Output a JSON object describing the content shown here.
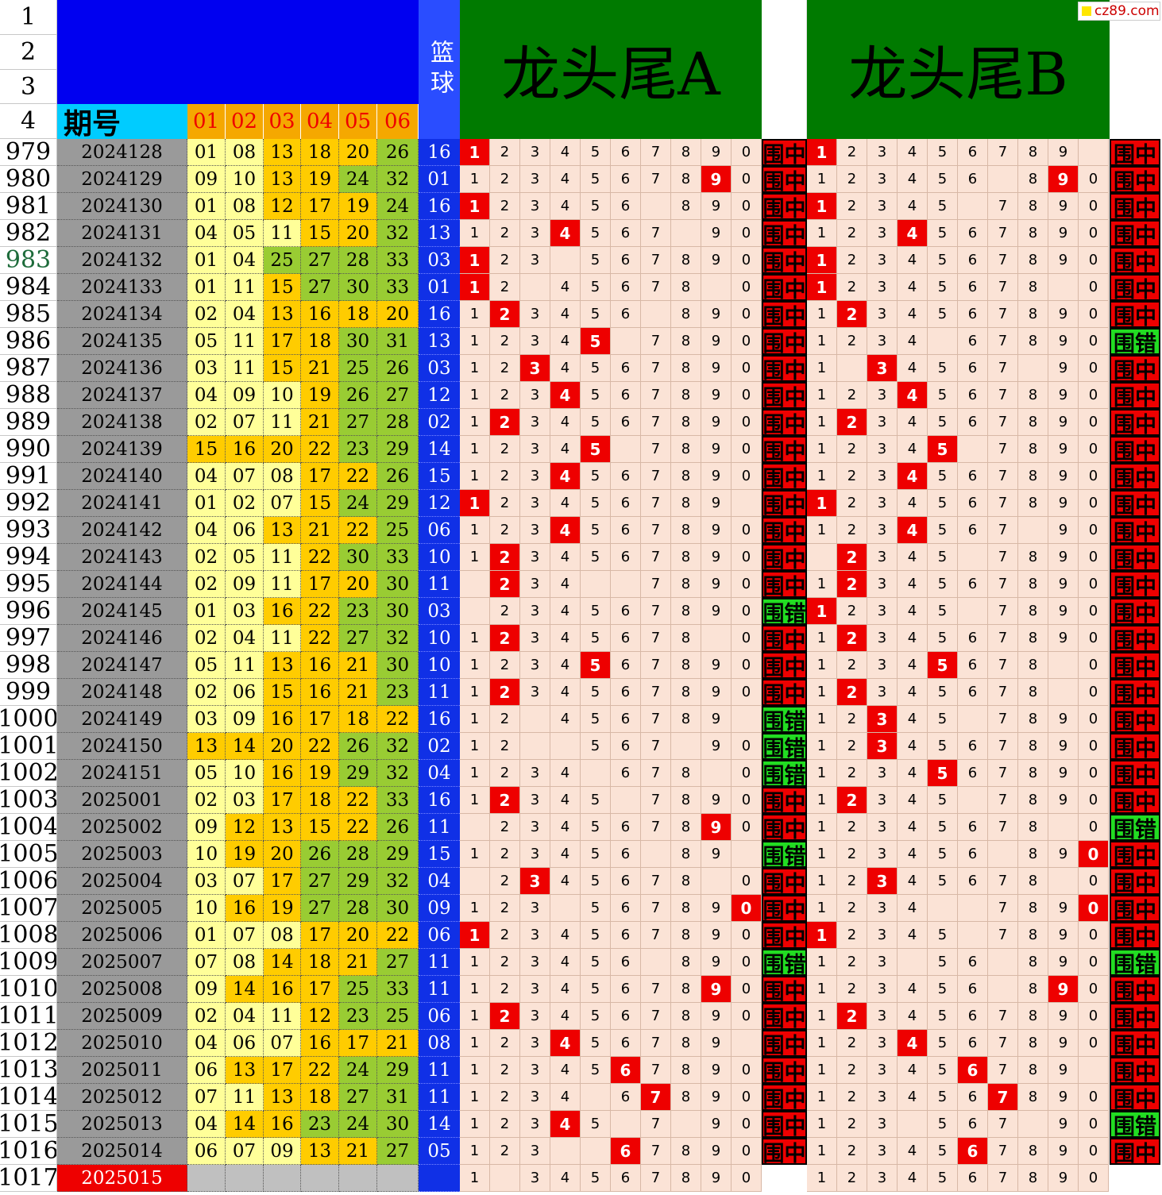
{
  "header": {
    "row_numbers": [
      "1",
      "2",
      "3",
      "4"
    ],
    "period_label": "期号",
    "num_headers": [
      "01",
      "02",
      "03",
      "04",
      "05",
      "06"
    ],
    "blue_label": "篮球",
    "title_a": "龙头尾A",
    "title_b": "龙头尾B",
    "logo": "cz89.com"
  },
  "legend_colors": {
    "hit": "#ee0000",
    "status_hit": "#ee0000",
    "status_miss": "#22dd22",
    "period": "#9a9a9a",
    "blue": "#1030e6"
  },
  "status_labels": {
    "hit": "围中",
    "miss": "围错"
  },
  "rows": [
    {
      "n": "979",
      "p": "2024128",
      "nums": [
        "01",
        "08",
        "13",
        "18",
        "20",
        "26"
      ],
      "b": "16",
      "a": "1",
      "ae": "",
      "as": "h",
      "bd": "1",
      "be": "0",
      "bs": "h"
    },
    {
      "n": "980",
      "p": "2024129",
      "nums": [
        "09",
        "10",
        "13",
        "19",
        "24",
        "32"
      ],
      "b": "01",
      "a": "9",
      "ae": "",
      "as": "h",
      "bd": "9",
      "be": "7",
      "bs": "h"
    },
    {
      "n": "981",
      "p": "2024130",
      "nums": [
        "01",
        "08",
        "12",
        "17",
        "19",
        "24"
      ],
      "b": "16",
      "a": "1",
      "ae": "7",
      "as": "h",
      "bd": "1",
      "be": "6",
      "bs": "h"
    },
    {
      "n": "982",
      "p": "2024131",
      "nums": [
        "04",
        "05",
        "11",
        "15",
        "20",
        "32"
      ],
      "b": "13",
      "a": "4",
      "ae": "8",
      "as": "h",
      "bd": "4",
      "be": "",
      "as2": "",
      "bs": "h"
    },
    {
      "n": "983",
      "p": "2024132",
      "nums": [
        "01",
        "04",
        "25",
        "27",
        "28",
        "33"
      ],
      "b": "03",
      "a": "1",
      "ae": "4",
      "as": "h",
      "bd": "1",
      "be": "",
      "bs": "h"
    },
    {
      "n": "984",
      "p": "2024133",
      "nums": [
        "01",
        "11",
        "15",
        "27",
        "30",
        "33"
      ],
      "b": "01",
      "a": "1",
      "ae": "3,9",
      "as": "h",
      "bd": "1",
      "be": "9",
      "bs": "h"
    },
    {
      "n": "985",
      "p": "2024134",
      "nums": [
        "02",
        "04",
        "13",
        "16",
        "18",
        "20"
      ],
      "b": "16",
      "a": "2",
      "ae": "7",
      "as": "h",
      "bd": "2",
      "be": "",
      "bs": "h"
    },
    {
      "n": "986",
      "p": "2024135",
      "nums": [
        "05",
        "11",
        "17",
        "18",
        "30",
        "31"
      ],
      "b": "13",
      "a": "5",
      "ae": "6",
      "as": "h",
      "bd": "",
      "be": "5",
      "bs": "m"
    },
    {
      "n": "987",
      "p": "2024136",
      "nums": [
        "03",
        "11",
        "15",
        "21",
        "25",
        "26"
      ],
      "b": "03",
      "a": "3",
      "ae": "",
      "as": "h",
      "bd": "3",
      "be": "2,8",
      "bs": "h"
    },
    {
      "n": "988",
      "p": "2024137",
      "nums": [
        "04",
        "09",
        "10",
        "19",
        "26",
        "27"
      ],
      "b": "12",
      "a": "4",
      "ae": "",
      "as": "h",
      "bd": "4",
      "be": "",
      "bs": "h"
    },
    {
      "n": "989",
      "p": "2024138",
      "nums": [
        "02",
        "07",
        "11",
        "21",
        "27",
        "28"
      ],
      "b": "02",
      "a": "2",
      "ae": "",
      "as": "h",
      "bd": "2",
      "be": "",
      "bs": "h"
    },
    {
      "n": "990",
      "p": "2024139",
      "nums": [
        "15",
        "16",
        "20",
        "22",
        "23",
        "29"
      ],
      "b": "14",
      "a": "5",
      "ae": "6",
      "as": "h",
      "bd": "5",
      "be": "6",
      "bs": "h"
    },
    {
      "n": "991",
      "p": "2024140",
      "nums": [
        "04",
        "07",
        "08",
        "17",
        "22",
        "26"
      ],
      "b": "15",
      "a": "4",
      "ae": "",
      "as": "h",
      "bd": "4",
      "be": "",
      "bs": "h"
    },
    {
      "n": "992",
      "p": "2024141",
      "nums": [
        "01",
        "02",
        "07",
        "15",
        "24",
        "29"
      ],
      "b": "12",
      "a": "1",
      "ae": "0",
      "as": "h",
      "bd": "1",
      "be": "",
      "bs": "h"
    },
    {
      "n": "993",
      "p": "2024142",
      "nums": [
        "04",
        "06",
        "13",
        "21",
        "22",
        "25"
      ],
      "b": "06",
      "a": "4",
      "ae": "",
      "as": "h",
      "bd": "4",
      "be": "8",
      "bs": "h"
    },
    {
      "n": "994",
      "p": "2024143",
      "nums": [
        "02",
        "05",
        "11",
        "22",
        "30",
        "33"
      ],
      "b": "10",
      "a": "2",
      "ae": "",
      "as": "h",
      "bd": "2",
      "be": "1,6",
      "bs": "h"
    },
    {
      "n": "995",
      "p": "2024144",
      "nums": [
        "02",
        "09",
        "11",
        "17",
        "20",
        "30"
      ],
      "b": "11",
      "a": "2",
      "ae": "1,5,6",
      "as": "h",
      "bd": "2",
      "be": "",
      "bs": "h"
    },
    {
      "n": "996",
      "p": "2024145",
      "nums": [
        "01",
        "03",
        "16",
        "22",
        "23",
        "30"
      ],
      "b": "03",
      "a": "",
      "ae": "1",
      "as": "m",
      "bd": "1",
      "be": "6",
      "bs": "h"
    },
    {
      "n": "997",
      "p": "2024146",
      "nums": [
        "02",
        "04",
        "11",
        "22",
        "27",
        "32"
      ],
      "b": "10",
      "a": "2",
      "ae": "9",
      "as": "h",
      "bd": "2",
      "be": "",
      "bs": "h"
    },
    {
      "n": "998",
      "p": "2024147",
      "nums": [
        "05",
        "11",
        "13",
        "16",
        "21",
        "30"
      ],
      "b": "10",
      "a": "5",
      "ae": "",
      "as": "h",
      "bd": "5",
      "be": "9",
      "bs": "h"
    },
    {
      "n": "999",
      "p": "2024148",
      "nums": [
        "02",
        "06",
        "15",
        "16",
        "21",
        "23"
      ],
      "b": "11",
      "a": "2",
      "ae": "",
      "as": "h",
      "bd": "2",
      "be": "9",
      "bs": "h"
    },
    {
      "n": "1000",
      "p": "2024149",
      "nums": [
        "03",
        "09",
        "16",
        "17",
        "18",
        "22"
      ],
      "b": "16",
      "a": "",
      "ae": "3,0",
      "as": "m",
      "bd": "3",
      "be": "6",
      "bs": "h"
    },
    {
      "n": "1001",
      "p": "2024150",
      "nums": [
        "13",
        "14",
        "20",
        "22",
        "26",
        "32"
      ],
      "b": "02",
      "a": "",
      "ae": "3,4,8",
      "as": "m",
      "bd": "3",
      "be": "",
      "bs": "h"
    },
    {
      "n": "1002",
      "p": "2024151",
      "nums": [
        "05",
        "10",
        "16",
        "19",
        "29",
        "32"
      ],
      "b": "04",
      "a": "",
      "ae": "5,9",
      "as": "m",
      "bd": "5",
      "be": "",
      "bs": "h"
    },
    {
      "n": "1003",
      "p": "2025001",
      "nums": [
        "02",
        "03",
        "17",
        "18",
        "22",
        "33"
      ],
      "b": "16",
      "a": "2",
      "ae": "6",
      "as": "h",
      "bd": "2",
      "be": "6",
      "bs": "h"
    },
    {
      "n": "1004",
      "p": "2025002",
      "nums": [
        "09",
        "12",
        "13",
        "15",
        "22",
        "26"
      ],
      "b": "11",
      "a": "9",
      "ae": "1",
      "as": "h",
      "bd": "",
      "be": "9",
      "bs": "m"
    },
    {
      "n": "1005",
      "p": "2025003",
      "nums": [
        "10",
        "19",
        "20",
        "26",
        "28",
        "29"
      ],
      "b": "15",
      "a": "",
      "ae": "7,0",
      "as": "m",
      "bd": "0",
      "be": "7",
      "bs": "h"
    },
    {
      "n": "1006",
      "p": "2025004",
      "nums": [
        "03",
        "07",
        "17",
        "27",
        "29",
        "32"
      ],
      "b": "04",
      "a": "3",
      "ae": "1,9",
      "as": "h",
      "bd": "3",
      "be": "9",
      "bs": "h"
    },
    {
      "n": "1007",
      "p": "2025005",
      "nums": [
        "10",
        "16",
        "19",
        "27",
        "28",
        "30"
      ],
      "b": "09",
      "a": "0",
      "ae": "4",
      "as": "h",
      "bd": "0",
      "be": "5,6",
      "bs": "h"
    },
    {
      "n": "1008",
      "p": "2025006",
      "nums": [
        "01",
        "07",
        "08",
        "17",
        "20",
        "22"
      ],
      "b": "06",
      "a": "1",
      "ae": "",
      "as": "h",
      "bd": "1",
      "be": "6",
      "bs": "h"
    },
    {
      "n": "1009",
      "p": "2025007",
      "nums": [
        "07",
        "08",
        "14",
        "18",
        "21",
        "27"
      ],
      "b": "11",
      "a": "",
      "ae": "7",
      "as": "m",
      "bd": "",
      "be": "4,7",
      "bs": "m"
    },
    {
      "n": "1010",
      "p": "2025008",
      "nums": [
        "09",
        "14",
        "16",
        "17",
        "25",
        "33"
      ],
      "b": "11",
      "a": "9",
      "ae": "",
      "as": "h",
      "bd": "9",
      "be": "7",
      "bs": "h"
    },
    {
      "n": "1011",
      "p": "2025009",
      "nums": [
        "02",
        "04",
        "11",
        "12",
        "23",
        "25"
      ],
      "b": "06",
      "a": "2",
      "ae": "",
      "as": "h",
      "bd": "2",
      "be": "",
      "bs": "h"
    },
    {
      "n": "1012",
      "p": "2025010",
      "nums": [
        "04",
        "06",
        "07",
        "16",
        "17",
        "21"
      ],
      "b": "08",
      "a": "4",
      "ae": "0",
      "as": "h",
      "bd": "4",
      "be": "",
      "bs": "h"
    },
    {
      "n": "1013",
      "p": "2025011",
      "nums": [
        "06",
        "13",
        "17",
        "22",
        "24",
        "29"
      ],
      "b": "11",
      "a": "6",
      "ae": "",
      "as": "h",
      "bd": "6",
      "be": "0",
      "bs": "h"
    },
    {
      "n": "1014",
      "p": "2025012",
      "nums": [
        "07",
        "11",
        "13",
        "18",
        "27",
        "31"
      ],
      "b": "11",
      "a": "7",
      "ae": "5",
      "as": "h",
      "bd": "7",
      "be": "",
      "bs": "h"
    },
    {
      "n": "1015",
      "p": "2025013",
      "nums": [
        "04",
        "14",
        "16",
        "23",
        "24",
        "30"
      ],
      "b": "14",
      "a": "4",
      "ae": "6,8",
      "as": "h",
      "bd": "",
      "be": "4,8",
      "bs": "m"
    },
    {
      "n": "1016",
      "p": "2025014",
      "nums": [
        "06",
        "07",
        "09",
        "13",
        "21",
        "27"
      ],
      "b": "05",
      "a": "6",
      "ae": "4,5",
      "as": "h",
      "bd": "6",
      "be": "",
      "bs": "h"
    },
    {
      "n": "1017",
      "p": "2025015",
      "nums": [
        "",
        "",
        "",
        "",
        "",
        ""
      ],
      "b": "",
      "a": "",
      "ae": "2",
      "as": "",
      "bd": "",
      "be": "",
      "bs": ""
    }
  ]
}
